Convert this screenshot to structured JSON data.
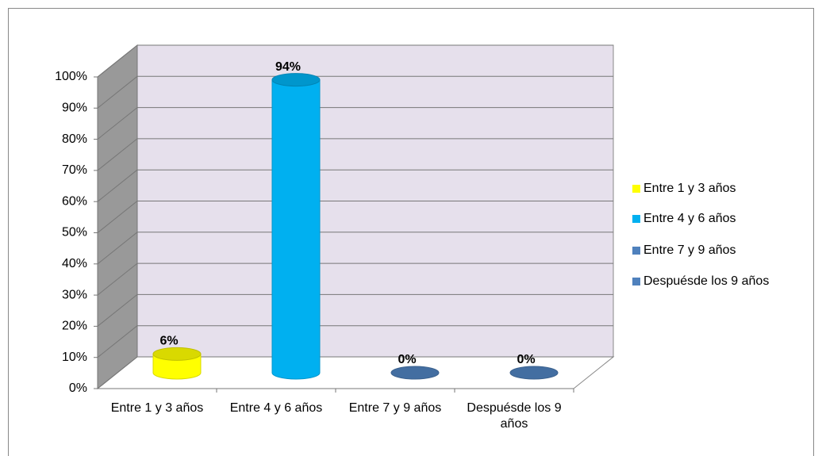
{
  "chart_data": {
    "type": "bar3d",
    "categories": [
      "Entre 1 y 3 años",
      "Entre 4 y 6 años",
      "Entre 7 y 9 años",
      "Despuésde los 9 años"
    ],
    "values": [
      6,
      94,
      0,
      0
    ],
    "value_labels": [
      "6%",
      "94%",
      "0%",
      "0%"
    ],
    "colors": [
      "#ffff00",
      "#00b0f0",
      "#4f81bd",
      "#4f81bd"
    ],
    "ylim": [
      0,
      100
    ],
    "yticks": [
      {
        "value": 0,
        "label": "0%"
      },
      {
        "value": 10,
        "label": "10%"
      },
      {
        "value": 20,
        "label": "20%"
      },
      {
        "value": 30,
        "label": "30%"
      },
      {
        "value": 40,
        "label": "40%"
      },
      {
        "value": 50,
        "label": "50%"
      },
      {
        "value": 60,
        "label": "60%"
      },
      {
        "value": 70,
        "label": "70%"
      },
      {
        "value": 80,
        "label": "80%"
      },
      {
        "value": 90,
        "label": "90%"
      },
      {
        "value": 100,
        "label": "100%"
      }
    ],
    "grid": true,
    "legend": "right"
  }
}
